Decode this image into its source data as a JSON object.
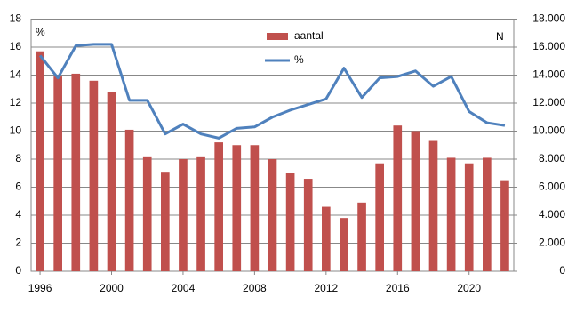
{
  "chart_data": {
    "type": "bar-line",
    "y_label": "%",
    "y2_label": "N",
    "x": [
      1996,
      1997,
      1998,
      1999,
      2000,
      2001,
      2002,
      2003,
      2004,
      2005,
      2006,
      2007,
      2008,
      2009,
      2010,
      2011,
      2012,
      2013,
      2014,
      2015,
      2016,
      2017,
      2018,
      2019,
      2020,
      2021,
      2022
    ],
    "xlim": [
      1995.5,
      2022.5
    ],
    "xticks": [
      1996,
      2000,
      2004,
      2008,
      2012,
      2016,
      2020
    ],
    "ylim": [
      0,
      18
    ],
    "yticks": [
      0,
      2,
      4,
      6,
      8,
      10,
      12,
      14,
      16,
      18
    ],
    "y2lim": [
      0,
      18000
    ],
    "y2ticks": [
      0,
      {
        "value": 2000,
        "label": "2.000"
      },
      {
        "value": 4000,
        "label": "4.000"
      },
      {
        "value": 6000,
        "label": "6.000"
      },
      {
        "value": 8000,
        "label": "8.000"
      },
      {
        "value": 10000,
        "label": "10.000"
      },
      {
        "value": 12000,
        "label": "12.000"
      },
      {
        "value": 14000,
        "label": "14.000"
      },
      {
        "value": 16000,
        "label": "16.000"
      },
      {
        "value": 18000,
        "label": "18.000"
      }
    ],
    "grid": true,
    "legend": "top-center",
    "series": [
      {
        "name": "aantal",
        "kind": "bar",
        "axis": "y2",
        "color": "#c0504d",
        "values": [
          15700,
          13900,
          14100,
          13600,
          12800,
          10100,
          8200,
          7100,
          8000,
          8200,
          9200,
          9000,
          9000,
          8000,
          7000,
          6600,
          4600,
          3800,
          4900,
          7700,
          10400,
          10000,
          9300,
          8100,
          7700,
          8100,
          6500
        ]
      },
      {
        "name": "%",
        "kind": "line",
        "color": "#4f81bd",
        "values": [
          15.4,
          13.8,
          16.1,
          16.2,
          16.2,
          12.2,
          12.2,
          9.8,
          10.5,
          9.8,
          9.5,
          10.2,
          10.3,
          11.0,
          11.5,
          11.9,
          12.3,
          14.5,
          12.4,
          13.8,
          13.9,
          14.3,
          13.2,
          13.9,
          11.4,
          10.6,
          10.4
        ]
      }
    ]
  }
}
